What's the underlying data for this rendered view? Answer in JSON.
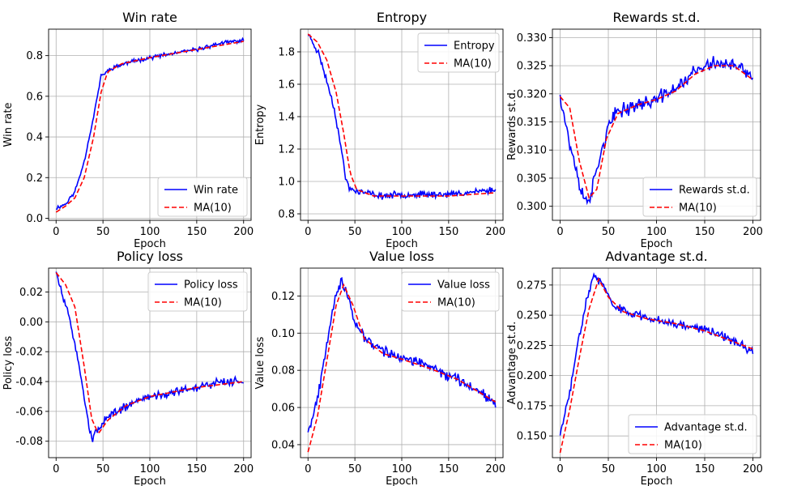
{
  "figure": {
    "width": 1000,
    "height": 600
  },
  "chart_data": [
    {
      "type": "line",
      "title": "Win rate",
      "xlabel": "Epoch",
      "ylabel": "Win rate",
      "xlim": [
        -8,
        208
      ],
      "ylim": [
        -0.01,
        0.93
      ],
      "xticks": [
        0,
        50,
        100,
        150,
        200
      ],
      "yticks": [
        0.0,
        0.2,
        0.4,
        0.6,
        0.8
      ],
      "ytick_decimals": 1,
      "grid": true,
      "legend": "bottom-right",
      "legend_width": 110,
      "series": [
        {
          "name": "Win rate",
          "color": "#0000ff",
          "style": "solid",
          "noise": 0.012,
          "seed": 11,
          "anchors": [
            [
              0,
              0.05
            ],
            [
              10,
              0.07
            ],
            [
              20,
              0.13
            ],
            [
              30,
              0.28
            ],
            [
              40,
              0.5
            ],
            [
              48,
              0.7
            ],
            [
              60,
              0.74
            ],
            [
              80,
              0.77
            ],
            [
              100,
              0.79
            ],
            [
              125,
              0.81
            ],
            [
              150,
              0.83
            ],
            [
              175,
              0.86
            ],
            [
              200,
              0.875
            ]
          ]
        },
        {
          "name": "MA(10)",
          "color": "#ff0000",
          "style": "dashed",
          "noise": 0,
          "seed": 0,
          "anchors": [
            [
              0,
              0.03
            ],
            [
              10,
              0.06
            ],
            [
              20,
              0.1
            ],
            [
              30,
              0.2
            ],
            [
              40,
              0.4
            ],
            [
              48,
              0.62
            ],
            [
              55,
              0.72
            ],
            [
              70,
              0.76
            ],
            [
              100,
              0.79
            ],
            [
              150,
              0.83
            ],
            [
              200,
              0.87
            ]
          ]
        }
      ]
    },
    {
      "type": "line",
      "title": "Entropy",
      "xlabel": "Epoch",
      "ylabel": "Entropy",
      "xlim": [
        -8,
        208
      ],
      "ylim": [
        0.76,
        1.94
      ],
      "xticks": [
        0,
        50,
        100,
        150,
        200
      ],
      "yticks": [
        0.8,
        1.0,
        1.2,
        1.4,
        1.6,
        1.8
      ],
      "ytick_decimals": 1,
      "grid": true,
      "legend": "top-right",
      "legend_width": 100,
      "series": [
        {
          "name": "Entropy",
          "color": "#0000ff",
          "style": "solid",
          "noise": 0.025,
          "seed": 23,
          "anchors": [
            [
              0,
              1.91
            ],
            [
              5,
              1.86
            ],
            [
              12,
              1.78
            ],
            [
              20,
              1.62
            ],
            [
              28,
              1.45
            ],
            [
              35,
              1.22
            ],
            [
              40,
              1.02
            ],
            [
              45,
              0.95
            ],
            [
              60,
              0.93
            ],
            [
              80,
              0.91
            ],
            [
              100,
              0.92
            ],
            [
              150,
              0.92
            ],
            [
              200,
              0.95
            ]
          ]
        },
        {
          "name": "MA(10)",
          "color": "#ff0000",
          "style": "dashed",
          "noise": 0,
          "seed": 0,
          "anchors": [
            [
              0,
              1.91
            ],
            [
              10,
              1.86
            ],
            [
              20,
              1.75
            ],
            [
              30,
              1.55
            ],
            [
              38,
              1.3
            ],
            [
              45,
              1.05
            ],
            [
              52,
              0.95
            ],
            [
              70,
              0.91
            ],
            [
              100,
              0.91
            ],
            [
              150,
              0.91
            ],
            [
              200,
              0.93
            ]
          ]
        }
      ]
    },
    {
      "type": "line",
      "title": "Rewards st.d.",
      "xlabel": "Epoch",
      "ylabel": "Rewards st.d.",
      "xlim": [
        -8,
        208
      ],
      "ylim": [
        0.2975,
        0.3315
      ],
      "xticks": [
        0,
        50,
        100,
        150,
        200
      ],
      "yticks": [
        0.3,
        0.305,
        0.31,
        0.315,
        0.32,
        0.325,
        0.33
      ],
      "ytick_decimals": 3,
      "grid": true,
      "legend": "bottom-right",
      "legend_width": 140,
      "series": [
        {
          "name": "Rewards st.d.",
          "color": "#0000ff",
          "style": "solid",
          "noise": 0.0016,
          "seed": 37,
          "anchors": [
            [
              0,
              0.32
            ],
            [
              10,
              0.311
            ],
            [
              20,
              0.304
            ],
            [
              25,
              0.301
            ],
            [
              32,
              0.302
            ],
            [
              40,
              0.308
            ],
            [
              50,
              0.314
            ],
            [
              60,
              0.317
            ],
            [
              80,
              0.318
            ],
            [
              100,
              0.319
            ],
            [
              120,
              0.321
            ],
            [
              140,
              0.324
            ],
            [
              160,
              0.3255
            ],
            [
              180,
              0.325
            ],
            [
              200,
              0.323
            ]
          ]
        },
        {
          "name": "MA(10)",
          "color": "#ff0000",
          "style": "dashed",
          "noise": 0,
          "seed": 0,
          "anchors": [
            [
              0,
              0.3195
            ],
            [
              10,
              0.3175
            ],
            [
              20,
              0.308
            ],
            [
              30,
              0.3015
            ],
            [
              38,
              0.303
            ],
            [
              48,
              0.312
            ],
            [
              60,
              0.3165
            ],
            [
              80,
              0.318
            ],
            [
              100,
              0.319
            ],
            [
              120,
              0.3205
            ],
            [
              140,
              0.3235
            ],
            [
              160,
              0.325
            ],
            [
              180,
              0.325
            ],
            [
              200,
              0.3225
            ]
          ]
        }
      ]
    },
    {
      "type": "line",
      "title": "Policy loss",
      "xlabel": "Epoch",
      "ylabel": "Policy loss",
      "xlim": [
        -8,
        208
      ],
      "ylim": [
        -0.091,
        0.036
      ],
      "xticks": [
        0,
        50,
        100,
        150,
        200
      ],
      "yticks": [
        -0.08,
        -0.06,
        -0.04,
        -0.02,
        0.0,
        0.02
      ],
      "ytick_decimals": 2,
      "grid": true,
      "legend": "top-right",
      "legend_width": 122,
      "series": [
        {
          "name": "Policy loss",
          "color": "#0000ff",
          "style": "solid",
          "noise": 0.0035,
          "seed": 51,
          "anchors": [
            [
              0,
              0.033
            ],
            [
              8,
              0.015
            ],
            [
              15,
              0.0
            ],
            [
              22,
              -0.02
            ],
            [
              30,
              -0.05
            ],
            [
              38,
              -0.08
            ],
            [
              45,
              -0.07
            ],
            [
              60,
              -0.062
            ],
            [
              80,
              -0.055
            ],
            [
              100,
              -0.05
            ],
            [
              125,
              -0.047
            ],
            [
              150,
              -0.044
            ],
            [
              175,
              -0.04
            ],
            [
              200,
              -0.04
            ]
          ]
        },
        {
          "name": "MA(10)",
          "color": "#ff0000",
          "style": "dashed",
          "noise": 0,
          "seed": 0,
          "anchors": [
            [
              0,
              0.033
            ],
            [
              10,
              0.025
            ],
            [
              20,
              0.01
            ],
            [
              30,
              -0.03
            ],
            [
              38,
              -0.065
            ],
            [
              45,
              -0.075
            ],
            [
              55,
              -0.066
            ],
            [
              75,
              -0.056
            ],
            [
              100,
              -0.05
            ],
            [
              150,
              -0.044
            ],
            [
              200,
              -0.04
            ]
          ]
        }
      ]
    },
    {
      "type": "line",
      "title": "Value loss",
      "xlabel": "Epoch",
      "ylabel": "Value loss",
      "xlim": [
        -8,
        208
      ],
      "ylim": [
        0.033,
        0.135
      ],
      "xticks": [
        0,
        50,
        100,
        150,
        200
      ],
      "yticks": [
        0.04,
        0.06,
        0.08,
        0.1,
        0.12
      ],
      "ytick_decimals": 2,
      "grid": true,
      "legend": "top-right",
      "legend_width": 120,
      "series": [
        {
          "name": "Value loss",
          "color": "#0000ff",
          "style": "solid",
          "noise": 0.0035,
          "seed": 67,
          "anchors": [
            [
              0,
              0.048
            ],
            [
              5,
              0.055
            ],
            [
              12,
              0.07
            ],
            [
              20,
              0.095
            ],
            [
              28,
              0.118
            ],
            [
              35,
              0.128
            ],
            [
              42,
              0.12
            ],
            [
              50,
              0.105
            ],
            [
              60,
              0.098
            ],
            [
              80,
              0.09
            ],
            [
              100,
              0.087
            ],
            [
              130,
              0.082
            ],
            [
              160,
              0.075
            ],
            [
              180,
              0.07
            ],
            [
              200,
              0.063
            ]
          ]
        },
        {
          "name": "MA(10)",
          "color": "#ff0000",
          "style": "dashed",
          "noise": 0,
          "seed": 0,
          "anchors": [
            [
              0,
              0.036
            ],
            [
              10,
              0.055
            ],
            [
              20,
              0.085
            ],
            [
              30,
              0.115
            ],
            [
              38,
              0.126
            ],
            [
              48,
              0.115
            ],
            [
              60,
              0.097
            ],
            [
              80,
              0.089
            ],
            [
              100,
              0.086
            ],
            [
              130,
              0.081
            ],
            [
              160,
              0.075
            ],
            [
              200,
              0.063
            ]
          ]
        }
      ]
    },
    {
      "type": "line",
      "title": "Advantage st.d.",
      "xlabel": "Epoch",
      "ylabel": "Advantage st.d.",
      "xlim": [
        -8,
        208
      ],
      "ylim": [
        0.132,
        0.289
      ],
      "xticks": [
        0,
        50,
        100,
        150,
        200
      ],
      "yticks": [
        0.15,
        0.175,
        0.2,
        0.225,
        0.25,
        0.275
      ],
      "ytick_decimals": 3,
      "grid": true,
      "legend": "bottom-right",
      "legend_width": 158,
      "series": [
        {
          "name": "Advantage st.d.",
          "color": "#0000ff",
          "style": "solid",
          "noise": 0.0045,
          "seed": 83,
          "anchors": [
            [
              0,
              0.15
            ],
            [
              5,
              0.168
            ],
            [
              12,
              0.195
            ],
            [
              20,
              0.235
            ],
            [
              28,
              0.265
            ],
            [
              35,
              0.282
            ],
            [
              42,
              0.278
            ],
            [
              55,
              0.258
            ],
            [
              70,
              0.252
            ],
            [
              90,
              0.248
            ],
            [
              110,
              0.245
            ],
            [
              140,
              0.24
            ],
            [
              160,
              0.237
            ],
            [
              180,
              0.228
            ],
            [
              200,
              0.22
            ]
          ]
        },
        {
          "name": "MA(10)",
          "color": "#ff0000",
          "style": "dashed",
          "noise": 0,
          "seed": 0,
          "anchors": [
            [
              0,
              0.136
            ],
            [
              10,
              0.172
            ],
            [
              20,
              0.215
            ],
            [
              30,
              0.255
            ],
            [
              40,
              0.28
            ],
            [
              50,
              0.265
            ],
            [
              65,
              0.253
            ],
            [
              90,
              0.247
            ],
            [
              120,
              0.243
            ],
            [
              150,
              0.237
            ],
            [
              180,
              0.228
            ],
            [
              200,
              0.222
            ]
          ]
        }
      ]
    }
  ]
}
